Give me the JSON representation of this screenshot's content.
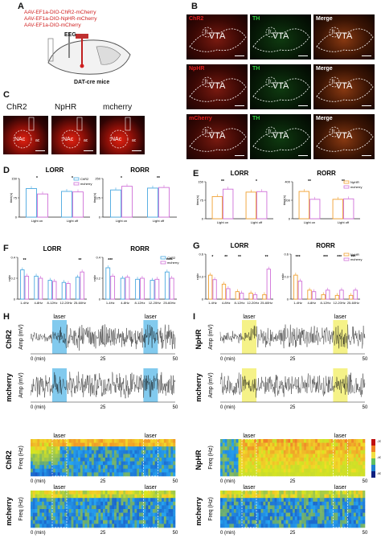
{
  "panels": {
    "A": "A",
    "B": "B",
    "C": "C",
    "D": "D",
    "E": "E",
    "F": "F",
    "G": "G",
    "H": "H",
    "I": "I"
  },
  "panelA": {
    "viruses": [
      "AAV-EF1a-DIO-ChR2-mCherry",
      "AAV-EF1a-DIO-NpHR-mCherry",
      "AAV-EF1a-DIO-mCherry"
    ],
    "eeg": "EEG",
    "mice": "DAT-cre mice"
  },
  "panelB": {
    "rows": [
      {
        "label": "ChR2",
        "color": "#e02020"
      },
      {
        "label": "NpHR",
        "color": "#e02020"
      },
      {
        "label": "mCherry",
        "color": "#e02020"
      }
    ],
    "th": "TH",
    "merge": "Merge",
    "vta": "VTA",
    "fr": "fr"
  },
  "panelC": {
    "items": [
      "ChR2",
      "NpHR",
      "mcherry"
    ],
    "nac": "NAc",
    "ac": "ac"
  },
  "colors": {
    "chr2": "#4aa8e0",
    "mcherry": "#d070d8",
    "nphr": "#f0a030",
    "laserBlue": "#58b8e8",
    "laserYellow": "#f2ee60"
  },
  "chart_data": [
    {
      "id": "D-LORR",
      "type": "bar",
      "title": "LORR",
      "ylabel": "time(s)",
      "categories": [
        "Light on",
        "Light off"
      ],
      "ylim": [
        0,
        150
      ],
      "series": [
        {
          "name": "ChR2",
          "values": [
            111,
            100
          ]
        },
        {
          "name": "mcherry",
          "values": [
            90,
            98
          ]
        }
      ],
      "legend": [
        "ChR2",
        "mcherry"
      ],
      "sig": [
        "*",
        "*"
      ]
    },
    {
      "id": "D-RORR",
      "type": "bar",
      "title": "RORR",
      "ylabel": "time(s)",
      "categories": [
        "Light on",
        "Light off"
      ],
      "ylim": [
        0,
        250
      ],
      "series": [
        {
          "name": "ChR2",
          "values": [
            176,
            188
          ]
        },
        {
          "name": "mcherry",
          "values": [
            200,
            192
          ]
        }
      ],
      "sig": [
        "*",
        "**"
      ]
    },
    {
      "id": "E-LORR",
      "type": "bar",
      "title": "LORR",
      "ylabel": "time(s)",
      "categories": [
        "Light on",
        "Light off"
      ],
      "ylim": [
        0,
        150
      ],
      "series": [
        {
          "name": "NpHR",
          "values": [
            90,
            108
          ]
        },
        {
          "name": "mcherry",
          "values": [
            120,
            110
          ]
        }
      ],
      "sig": [
        "**",
        "*"
      ]
    },
    {
      "id": "E-RORR",
      "type": "bar",
      "title": "RORR",
      "ylabel": "time(s)",
      "categories": [
        "Light on",
        "Light off"
      ],
      "ylim": [
        0,
        400
      ],
      "series": [
        {
          "name": "NpHR",
          "values": [
            295,
            210
          ]
        },
        {
          "name": "mcherry",
          "values": [
            210,
            215
          ]
        }
      ],
      "legend": [
        "NpHR",
        "mcherry"
      ],
      "sig": [
        "**",
        "**"
      ]
    },
    {
      "id": "F-LORR",
      "type": "bar",
      "title": "LORR",
      "ylabel": "ratio",
      "categories": [
        "1-4Hz",
        "4-8Hz",
        "8-12Hz",
        "12-20Hz",
        "25-60Hz"
      ],
      "ylim": [
        0,
        0.4
      ],
      "series": [
        {
          "name": "ChR2",
          "values": [
            0.28,
            0.22,
            0.18,
            0.16,
            0.21
          ]
        },
        {
          "name": "mcherry",
          "values": [
            0.22,
            0.2,
            0.17,
            0.15,
            0.26
          ]
        }
      ],
      "sig": [
        "**",
        "",
        "",
        "",
        "**"
      ]
    },
    {
      "id": "F-RORR",
      "type": "bar",
      "title": "RORR",
      "ylabel": "ratio",
      "categories": [
        "1-4Hz",
        "4-8Hz",
        "8-12Hz",
        "12-20Hz",
        "25-60Hz"
      ],
      "ylim": [
        0,
        0.4
      ],
      "series": [
        {
          "name": "ChR2",
          "values": [
            0.3,
            0.2,
            0.19,
            0.18,
            0.26
          ]
        },
        {
          "name": "mcherry",
          "values": [
            0.22,
            0.21,
            0.2,
            0.19,
            0.2
          ]
        }
      ],
      "legend": [
        "ChR2",
        "mcherry"
      ],
      "sig": [
        "***",
        "",
        "",
        "",
        "****"
      ]
    },
    {
      "id": "G-LORR",
      "type": "bar",
      "title": "LORR",
      "ylabel": "ratio",
      "categories": [
        "1-4Hz",
        "4-8Hz",
        "8-12Hz",
        "12-20Hz",
        "25-60Hz"
      ],
      "ylim": [
        0,
        0.6
      ],
      "series": [
        {
          "name": "NpHR",
          "values": [
            0.32,
            0.2,
            0.1,
            0.08,
            0.06
          ]
        },
        {
          "name": "mcherry",
          "values": [
            0.26,
            0.14,
            0.08,
            0.06,
            0.4
          ]
        }
      ],
      "sig": [
        "*",
        "**",
        "**",
        "",
        "**"
      ]
    },
    {
      "id": "G-RORR",
      "type": "bar",
      "title": "RORR",
      "ylabel": "ratio",
      "categories": [
        "1-4Hz",
        "4-8Hz",
        "8-12Hz",
        "12-20Hz",
        "25-60Hz"
      ],
      "ylim": [
        0,
        0.6
      ],
      "series": [
        {
          "name": "NpHR",
          "values": [
            0.32,
            0.12,
            0.06,
            0.05,
            0.05
          ]
        },
        {
          "name": "mcherry",
          "values": [
            0.24,
            0.1,
            0.12,
            0.12,
            0.12
          ]
        }
      ],
      "legend": [
        "NpHR",
        "mcherry"
      ],
      "sig": [
        "***",
        "",
        "***",
        "***",
        "***"
      ]
    }
  ],
  "traces": {
    "H": {
      "rows": [
        "ChR2",
        "mcherry"
      ],
      "specRows": [
        "ChR2",
        "mcherry"
      ],
      "laser": "laser",
      "ampLabel": "Amp (mV)",
      "freqLabel": "Freq (Hz)",
      "xticks": [
        "0 (min)",
        "25",
        "50"
      ]
    },
    "I": {
      "rows": [
        "NpHR",
        "mcherry"
      ],
      "specRows": [
        "NpHR",
        "mcherry"
      ],
      "laser": "laser",
      "ampLabel": "Amp (mV)",
      "freqLabel": "Freq (Hz)",
      "xticks": [
        "0 (min)",
        "25",
        "50"
      ],
      "colorbar": [
        "-20",
        "-40",
        "-60"
      ]
    }
  }
}
